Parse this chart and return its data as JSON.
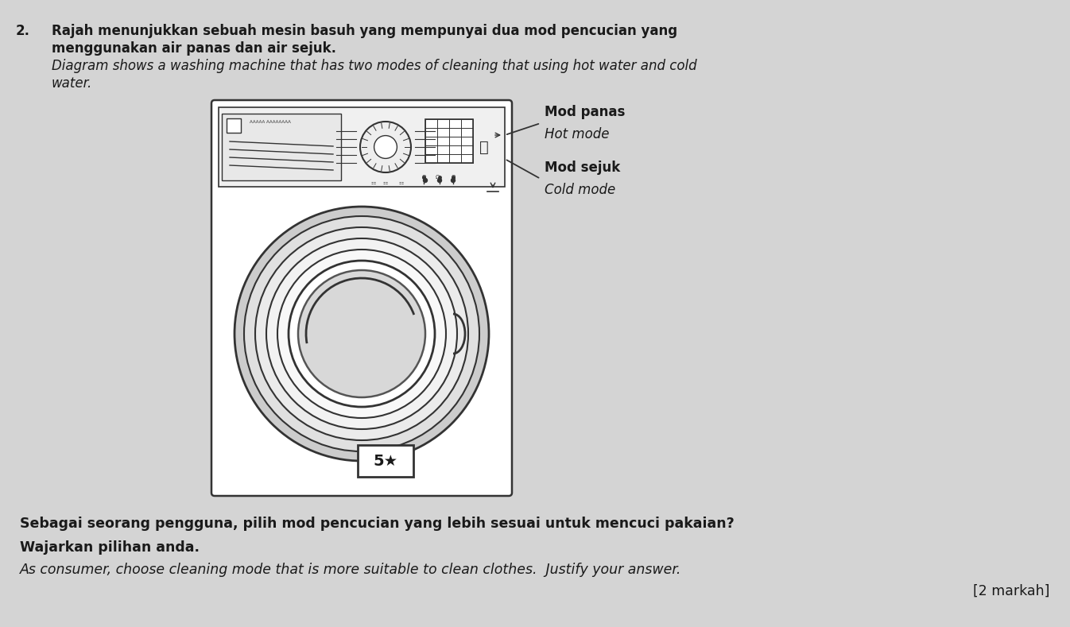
{
  "background_color": "#d4d4d4",
  "question_number": "2.",
  "text_line1_bold": "Rajah menunjukkan sebuah mesin basuh yang mempunyai dua mod pencucian yang",
  "text_line2_bold": "menggunakan air panas dan air sejuk.",
  "text_line3_italic": "Diagram shows a washing machine that has two modes of cleaning that using hot water and cold",
  "text_line4_italic": "water.",
  "label_hot_malay": "Mod panas",
  "label_hot_eng": "Hot mode",
  "label_cold_malay": "Mod sejuk",
  "label_cold_eng": "Cold mode",
  "star_label": "5★",
  "bottom_text1": "Sebagai seorang pengguna, pilih mod pencucian yang lebih sesuai untuk mencuci pakaian?",
  "bottom_text2": "Wajarkan pilihan anda.",
  "bottom_text3": "As consumer, choose cleaning mode that is more suitable to clean clothes.  Justify your answer.",
  "bottom_text4": "[2 markah]",
  "text_color": "#1a1a1a",
  "machine_color": "#ffffff",
  "machine_border": "#333333",
  "line_color": "#333333"
}
